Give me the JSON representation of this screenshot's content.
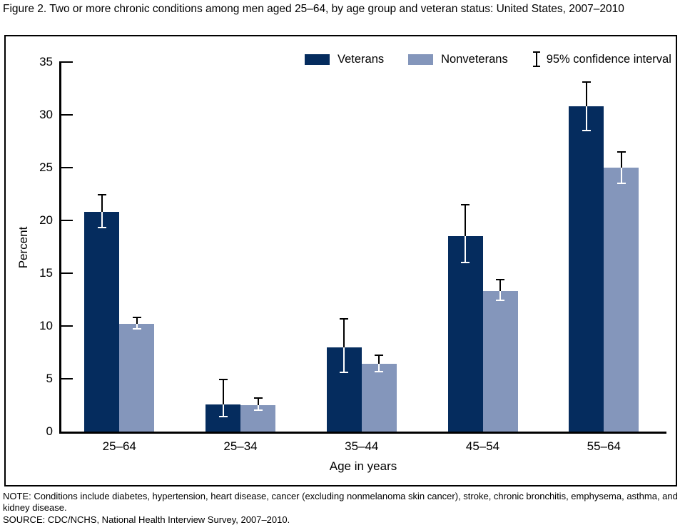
{
  "title": "Figure 2. Two or more chronic conditions among men aged 25–64, by age group and veteran status:  United States, 2007–2010",
  "legend": {
    "veterans_label": "Veterans",
    "nonveterans_label": "Nonveterans",
    "ci_label": "95% confidence interval"
  },
  "colors": {
    "veterans": "#052c5e",
    "nonveterans": "#8496bb",
    "axis": "#000000",
    "error_bar_above": "#000000",
    "error_bar_inside": "#ffffff"
  },
  "y_ticks": [
    0,
    5,
    10,
    15,
    20,
    25,
    30,
    35
  ],
  "chart_data": {
    "type": "bar",
    "title": "Two or more chronic conditions among men aged 25–64, by age group and veteran status: United States, 2007–2010",
    "categories": [
      "25–64",
      "25–34",
      "35–44",
      "45–54",
      "55–64"
    ],
    "series": [
      {
        "name": "Veterans",
        "values": [
          20.8,
          2.6,
          8.0,
          18.5,
          30.8
        ],
        "ci_low": [
          19.3,
          1.4,
          5.6,
          16.0,
          28.5
        ],
        "ci_high": [
          22.4,
          4.9,
          10.7,
          21.5,
          33.1
        ]
      },
      {
        "name": "Nonveterans",
        "values": [
          10.2,
          2.5,
          6.4,
          13.3,
          25.0
        ],
        "ci_low": [
          9.7,
          2.0,
          5.7,
          12.4,
          23.5
        ],
        "ci_high": [
          10.8,
          3.2,
          7.2,
          14.4,
          26.5
        ]
      }
    ],
    "xlabel": "Age in years",
    "ylabel": "Percent",
    "ylim": [
      0,
      35
    ],
    "ytick_interval": 5,
    "grid": false,
    "legend_position": "top-center",
    "error_bars": "95% confidence interval"
  },
  "footer": {
    "note": "NOTE: Conditions include diabetes, hypertension, heart disease, cancer (excluding nonmelanoma skin cancer), stroke, chronic bronchitis, emphysema, asthma, and kidney disease.",
    "source": "SOURCE: CDC/NCHS, National Health Interview Survey, 2007–2010."
  }
}
